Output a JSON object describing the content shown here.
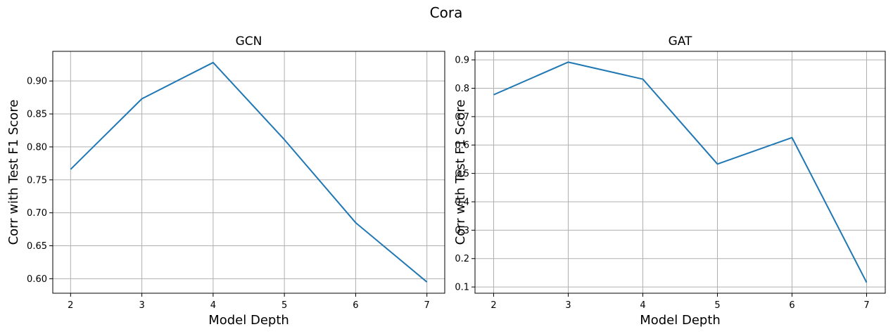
{
  "figure_title": "Cora",
  "chart_data": [
    {
      "type": "line",
      "title": "GCN",
      "xlabel": "Model Depth",
      "ylabel": "Corr with Test F1 Score",
      "x": [
        2,
        3,
        4,
        5,
        6,
        7
      ],
      "series": [
        {
          "values": [
            0.766,
            0.873,
            0.928,
            0.811,
            0.685,
            0.595
          ],
          "color": "#1f77b4"
        }
      ],
      "xlim": [
        1.75,
        7.25
      ],
      "ylim": [
        0.578,
        0.945
      ],
      "xticks": [
        2,
        3,
        4,
        5,
        6,
        7
      ],
      "xtick_labels": [
        "2",
        "3",
        "4",
        "5",
        "6",
        "7"
      ],
      "yticks": [
        0.6,
        0.65,
        0.7,
        0.75,
        0.8,
        0.85,
        0.9
      ],
      "ytick_labels": [
        "0.60",
        "0.65",
        "0.70",
        "0.75",
        "0.80",
        "0.85",
        "0.90"
      ],
      "grid": true
    },
    {
      "type": "line",
      "title": "GAT",
      "xlabel": "Model Depth",
      "ylabel": "Corr with Test F1 Score",
      "x": [
        2,
        3,
        4,
        5,
        6,
        7
      ],
      "series": [
        {
          "values": [
            0.777,
            0.892,
            0.832,
            0.533,
            0.626,
            0.116
          ],
          "color": "#1f77b4"
        }
      ],
      "xlim": [
        1.75,
        7.25
      ],
      "ylim": [
        0.078,
        0.93
      ],
      "xticks": [
        2,
        3,
        4,
        5,
        6,
        7
      ],
      "xtick_labels": [
        "2",
        "3",
        "4",
        "5",
        "6",
        "7"
      ],
      "yticks": [
        0.1,
        0.2,
        0.3,
        0.4,
        0.5,
        0.6,
        0.7,
        0.8,
        0.9
      ],
      "ytick_labels": [
        "0.1",
        "0.2",
        "0.3",
        "0.4",
        "0.5",
        "0.6",
        "0.7",
        "0.8",
        "0.9"
      ],
      "grid": true
    }
  ]
}
